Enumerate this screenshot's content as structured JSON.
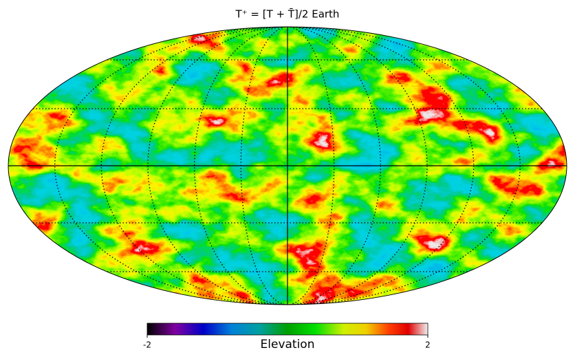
{
  "title": "T⁺ = [T + T̄]/2  Earth",
  "colorbar": {
    "label": "Elevation",
    "clim": [
      -2,
      2
    ],
    "ticks": [
      -2,
      2
    ]
  }
}
